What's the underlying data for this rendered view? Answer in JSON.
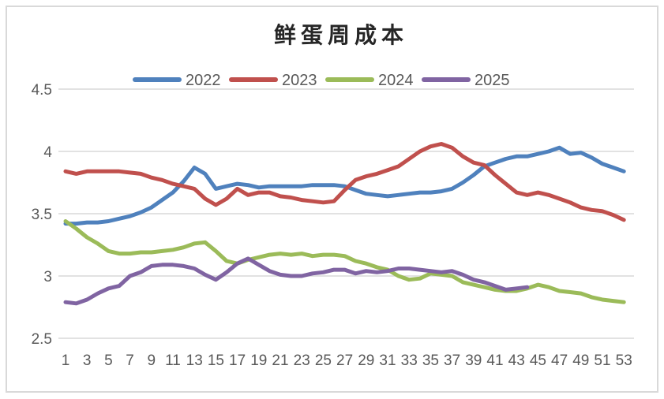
{
  "frame": {
    "background": "#FFFFFF",
    "border_color": "#D9D9D9"
  },
  "chart_data": {
    "type": "line",
    "title": "鲜蛋周成本",
    "xlabel": "",
    "ylabel": "",
    "grid": true,
    "legend_position": "top",
    "ylim": [
      2.5,
      4.5
    ],
    "y_ticks": [
      4.5,
      4.0,
      3.5,
      3.0,
      2.5
    ],
    "y_tick_labels": [
      "4.5",
      "4",
      "3.5",
      "3",
      "2.5"
    ],
    "x_range": [
      1,
      53
    ],
    "x_tick_labels": [
      "1",
      "3",
      "5",
      "7",
      "9",
      "11",
      "13",
      "15",
      "17",
      "19",
      "21",
      "23",
      "25",
      "27",
      "29",
      "31",
      "33",
      "35",
      "37",
      "39",
      "41",
      "43",
      "45",
      "47",
      "49",
      "51",
      "53"
    ],
    "x_tick_values": [
      1,
      3,
      5,
      7,
      9,
      11,
      13,
      15,
      17,
      19,
      21,
      23,
      25,
      27,
      29,
      31,
      33,
      35,
      37,
      39,
      41,
      43,
      45,
      47,
      49,
      51,
      53
    ],
    "series": [
      {
        "name": "2022",
        "color": "#4F81BD",
        "start_week": 1,
        "values": [
          3.42,
          3.42,
          3.43,
          3.43,
          3.44,
          3.46,
          3.48,
          3.51,
          3.55,
          3.61,
          3.67,
          3.76,
          3.87,
          3.82,
          3.7,
          3.72,
          3.74,
          3.73,
          3.71,
          3.72,
          3.72,
          3.72,
          3.72,
          3.73,
          3.73,
          3.73,
          3.72,
          3.69,
          3.66,
          3.65,
          3.64,
          3.65,
          3.66,
          3.67,
          3.67,
          3.68,
          3.7,
          3.75,
          3.81,
          3.88,
          3.91,
          3.94,
          3.96,
          3.96,
          3.98,
          4.0,
          4.03,
          3.98,
          3.99,
          3.95,
          3.9,
          3.87,
          3.84
        ]
      },
      {
        "name": "2023",
        "color": "#C0504D",
        "start_week": 1,
        "values": [
          3.84,
          3.82,
          3.84,
          3.84,
          3.84,
          3.84,
          3.83,
          3.82,
          3.79,
          3.77,
          3.74,
          3.72,
          3.7,
          3.62,
          3.57,
          3.62,
          3.7,
          3.65,
          3.67,
          3.67,
          3.64,
          3.63,
          3.61,
          3.6,
          3.59,
          3.6,
          3.69,
          3.77,
          3.8,
          3.82,
          3.85,
          3.88,
          3.94,
          4.0,
          4.04,
          4.06,
          4.03,
          3.96,
          3.91,
          3.89,
          3.81,
          3.74,
          3.67,
          3.65,
          3.67,
          3.65,
          3.62,
          3.59,
          3.55,
          3.53,
          3.52,
          3.49,
          3.45
        ]
      },
      {
        "name": "2024",
        "color": "#9BBB59",
        "start_week": 1,
        "values": [
          3.44,
          3.38,
          3.31,
          3.26,
          3.2,
          3.18,
          3.18,
          3.19,
          3.19,
          3.2,
          3.21,
          3.23,
          3.26,
          3.27,
          3.2,
          3.12,
          3.1,
          3.13,
          3.15,
          3.17,
          3.18,
          3.17,
          3.18,
          3.16,
          3.17,
          3.17,
          3.16,
          3.12,
          3.1,
          3.07,
          3.05,
          3.0,
          2.97,
          2.98,
          3.02,
          3.01,
          3.0,
          2.95,
          2.93,
          2.91,
          2.89,
          2.88,
          2.88,
          2.9,
          2.93,
          2.91,
          2.88,
          2.87,
          2.86,
          2.83,
          2.81,
          2.8,
          2.79
        ]
      },
      {
        "name": "2025",
        "color": "#8064A2",
        "start_week": 1,
        "values": [
          2.79,
          2.78,
          2.81,
          2.86,
          2.9,
          2.92,
          3.0,
          3.03,
          3.08,
          3.09,
          3.09,
          3.08,
          3.06,
          3.01,
          2.97,
          3.03,
          3.1,
          3.14,
          3.09,
          3.04,
          3.01,
          3.0,
          3.0,
          3.02,
          3.03,
          3.05,
          3.05,
          3.02,
          3.04,
          3.03,
          3.04,
          3.06,
          3.06,
          3.05,
          3.04,
          3.03,
          3.04,
          3.01,
          2.97,
          2.95,
          2.92,
          2.89,
          2.9,
          2.91
        ]
      }
    ]
  },
  "layout_hints": {
    "line_width": 5,
    "gridline_color": "#D9D9D9"
  }
}
